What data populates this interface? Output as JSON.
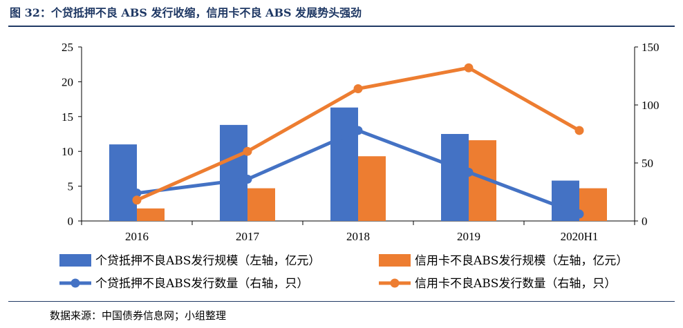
{
  "figure": {
    "title": "图 32：个贷抵押不良 ABS 发行收缩，信用卡不良 ABS 发展势头强劲",
    "source": "数据来源：中国债券信息网；小组整理"
  },
  "chart_data": {
    "type": "bar",
    "categories": [
      "2016",
      "2017",
      "2018",
      "2019",
      "2020H1"
    ],
    "y_left": {
      "ylim": [
        0,
        25
      ],
      "ticks": [
        "0",
        "5",
        "10",
        "15",
        "20",
        "25"
      ]
    },
    "y_right": {
      "ylim": [
        0,
        150
      ],
      "ticks": [
        "0",
        "50",
        "100",
        "150"
      ]
    },
    "series": [
      {
        "name": "个贷抵押不良ABS发行规模（左轴，亿元）",
        "type": "bar",
        "axis": "left",
        "color": "#4472c4",
        "values": [
          11.0,
          13.8,
          16.3,
          12.5,
          5.8
        ]
      },
      {
        "name": "信用卡不良ABS发行规模（左轴，亿元）",
        "type": "bar",
        "axis": "left",
        "color": "#ed7d31",
        "values": [
          1.8,
          4.7,
          9.3,
          11.6,
          4.7
        ]
      },
      {
        "name": "个贷抵押不良ABS发行数量（右轴，只）",
        "type": "line",
        "axis": "right",
        "color": "#4472c4",
        "values": [
          24,
          36,
          78,
          42,
          6
        ]
      },
      {
        "name": "信用卡不良ABS发行数量（右轴，只）",
        "type": "line",
        "axis": "right",
        "color": "#ed7d31",
        "values": [
          18,
          60,
          114,
          132,
          78
        ]
      }
    ],
    "legend_position": "bottom",
    "grid": false
  }
}
